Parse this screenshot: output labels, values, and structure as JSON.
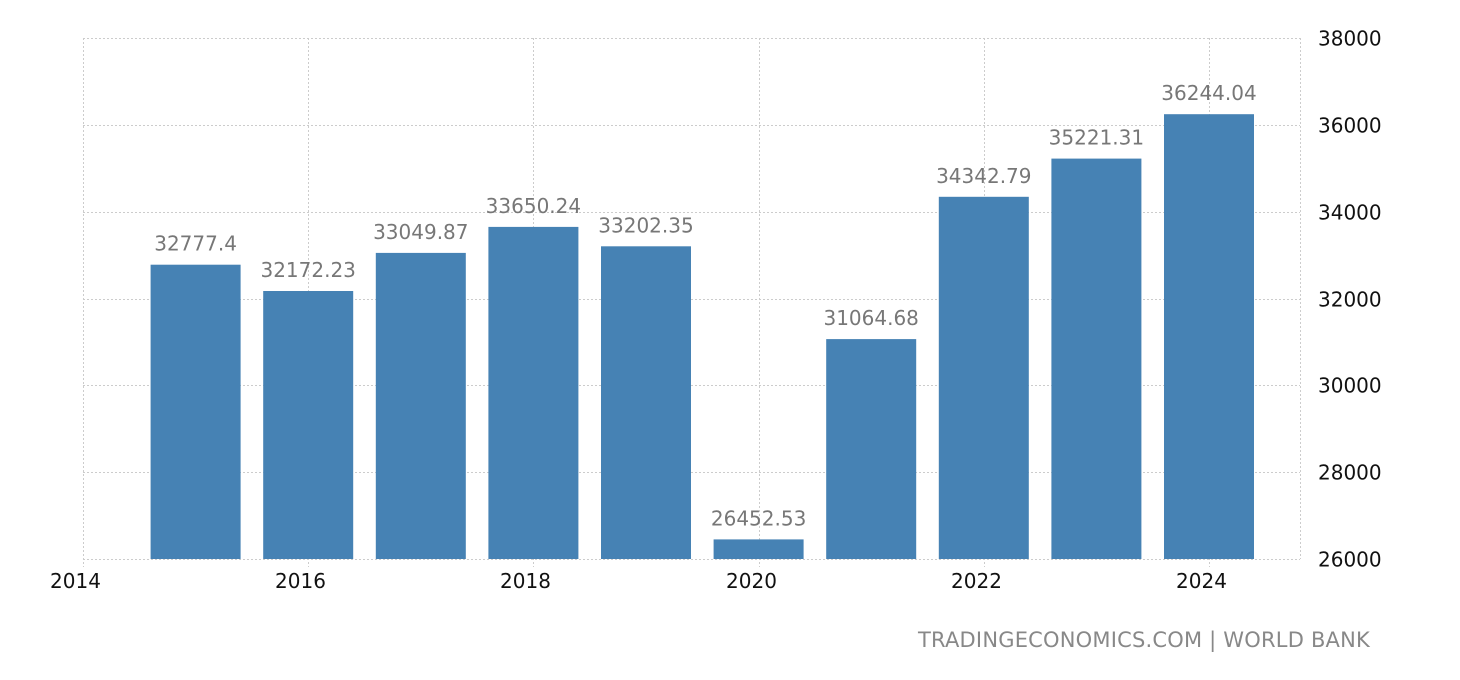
{
  "chart_data": {
    "type": "bar",
    "title": "",
    "xlabel": "",
    "ylabel": "",
    "categories": [
      "2015",
      "2016",
      "2017",
      "2018",
      "2019",
      "2020",
      "2021",
      "2022",
      "2023",
      "2024"
    ],
    "values": [
      32777.4,
      32172.23,
      33049.87,
      33650.24,
      33202.35,
      26452.53,
      31064.68,
      34342.79,
      35221.31,
      36244.04
    ],
    "value_labels": [
      "32777.4",
      "32172.23",
      "33049.87",
      "33650.24",
      "33202.35",
      "26452.53",
      "31064.68",
      "34342.79",
      "35221.31",
      "36244.04"
    ],
    "ylim": [
      26000,
      38000
    ],
    "y_ticks": [
      "26000",
      "28000",
      "30000",
      "32000",
      "34000",
      "36000",
      "38000"
    ],
    "x_ticks": [
      "2014",
      "2016",
      "2018",
      "2020",
      "2022",
      "2024"
    ],
    "y_axis_position": "right",
    "grid": true,
    "legend": null,
    "bar_color": "#4682b4"
  },
  "footer": {
    "source": "TRADINGECONOMICS.COM | WORLD BANK"
  }
}
